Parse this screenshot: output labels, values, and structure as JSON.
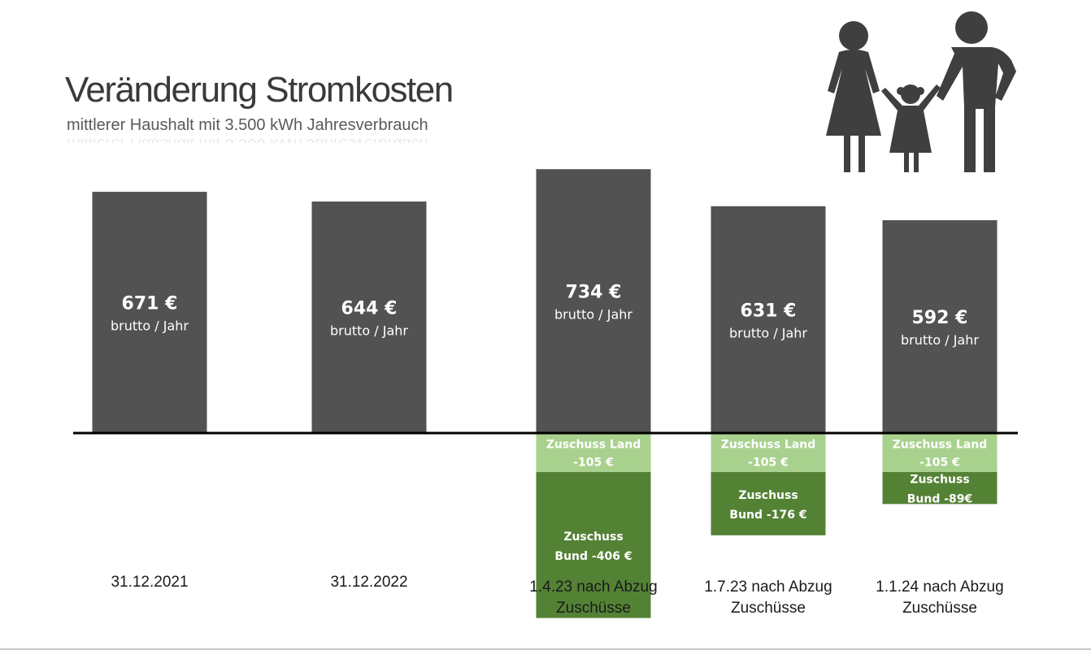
{
  "header": {
    "title": "Veränderung Stromkosten",
    "subtitle": "mittlerer Haushalt mit 3.500 kWh Jahresverbrauch"
  },
  "icon": {
    "name": "family-icon"
  },
  "colors": {
    "bar": "#525252",
    "zuschuss_land": "#a9d18e",
    "zuschuss_bund": "#548235",
    "baseline": "#000000"
  },
  "chart_data": {
    "type": "bar",
    "stacked_with_negative": true,
    "unit": "€",
    "categories": [
      [
        "31.12.2021"
      ],
      [
        "31.12.2022"
      ],
      [
        "1.4.23 nach Abzug",
        "Zuschüsse"
      ],
      [
        "1.7.23 nach Abzug",
        "Zuschüsse"
      ],
      [
        "1.1.24 nach Abzug",
        "Zuschüsse"
      ]
    ],
    "values": [
      671,
      644,
      734,
      631,
      592
    ],
    "value_labels": [
      "671 €",
      "644 €",
      "734 €",
      "631 €",
      "592 €"
    ],
    "unit_label": "brutto / Jahr",
    "subsidies": [
      null,
      null,
      {
        "land": {
          "value": -105,
          "label": [
            "Zuschuss Land",
            "-105 €"
          ]
        },
        "bund": {
          "value": -406,
          "label": [
            "Zuschuss",
            "Bund -406 €"
          ]
        }
      },
      {
        "land": {
          "value": -105,
          "label": [
            "Zuschuss Land",
            "-105 €"
          ]
        },
        "bund": {
          "value": -176,
          "label": [
            "Zuschuss",
            "Bund -176 €"
          ]
        }
      },
      {
        "land": {
          "value": -105,
          "label": [
            "Zuschuss Land",
            "-105 €"
          ]
        },
        "bund": {
          "value": -89,
          "label": [
            "Zuschuss",
            "Bund -89€"
          ]
        }
      }
    ]
  }
}
